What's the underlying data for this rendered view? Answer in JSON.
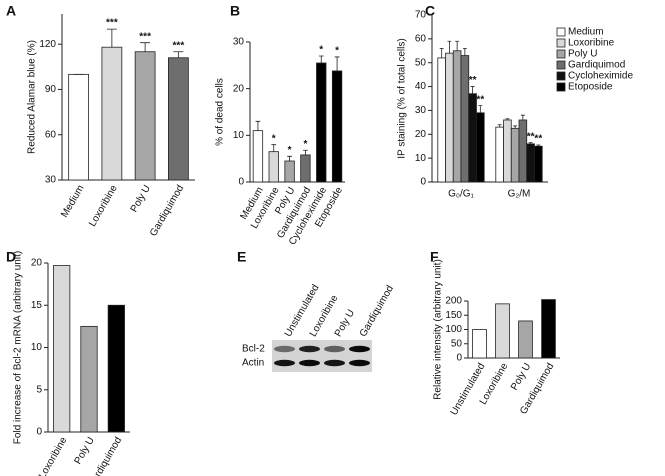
{
  "chart_data": [
    {
      "type": "bar",
      "label": "A",
      "ylabel": "Reduced Alamar blue (%)",
      "categories": [
        "Medium",
        "Loxoribine",
        "Poly U",
        "Gardiquimod"
      ],
      "values": [
        100,
        118,
        115,
        111
      ],
      "errors": [
        0,
        12,
        6,
        4
      ],
      "annotations": [
        null,
        "***",
        "***",
        "***"
      ],
      "colors": [
        "#ffffff",
        "#d9d9d9",
        "#a6a6a6",
        "#6e6e6e"
      ],
      "ylim": [
        30,
        140
      ],
      "yticks": [
        30,
        60,
        90,
        120
      ]
    },
    {
      "type": "bar",
      "label": "B",
      "ylabel": "% of dead cells",
      "categories": [
        "Medium",
        "Loxoribine",
        "Poly U",
        "Gardiquimod",
        "Cycloheximide",
        "Etoposide"
      ],
      "values": [
        11,
        6.5,
        4.5,
        5.8,
        25.5,
        23.8
      ],
      "errors": [
        2,
        1.5,
        1,
        1,
        1.5,
        3
      ],
      "annotations": [
        null,
        "*",
        "*",
        "*",
        "*",
        "*"
      ],
      "colors": [
        "#ffffff",
        "#d9d9d9",
        "#a6a6a6",
        "#6e6e6e",
        "#000000",
        "#000000"
      ],
      "ylim": [
        0,
        30
      ],
      "yticks": [
        0,
        10,
        20,
        30
      ]
    },
    {
      "type": "grouped_bar",
      "label": "C",
      "ylabel": "IP staining (% of total cells)",
      "categories": [
        "G₀/G₁",
        "G₂/M"
      ],
      "series": [
        {
          "name": "Medium",
          "color": "#ffffff",
          "values": [
            52,
            23
          ],
          "errors": [
            4,
            1
          ],
          "annotations": [
            null,
            null
          ]
        },
        {
          "name": "Loxoribine",
          "color": "#d9d9d9",
          "values": [
            54,
            26
          ],
          "errors": [
            5,
            0.5
          ],
          "annotations": [
            null,
            null
          ]
        },
        {
          "name": "Poly U",
          "color": "#a6a6a6",
          "values": [
            55,
            22.5
          ],
          "errors": [
            4,
            1
          ],
          "annotations": [
            null,
            null
          ]
        },
        {
          "name": "Gardiquimod",
          "color": "#6e6e6e",
          "values": [
            53,
            26
          ],
          "errors": [
            3,
            2
          ],
          "annotations": [
            null,
            null
          ]
        },
        {
          "name": "Cycloheximide",
          "color": "#111111",
          "values": [
            37,
            16
          ],
          "errors": [
            3,
            0.5
          ],
          "annotations": [
            "**",
            "**"
          ]
        },
        {
          "name": "Etoposide",
          "color": "#000000",
          "values": [
            29,
            15
          ],
          "errors": [
            3,
            0.5
          ],
          "annotations": [
            "**",
            "**"
          ]
        }
      ],
      "ylim": [
        0,
        70
      ],
      "yticks": [
        0,
        10,
        20,
        30,
        40,
        50,
        60,
        70
      ]
    },
    {
      "type": "bar",
      "label": "D",
      "ylabel": "Fold increase of Bcl-2 mRNA (arbitrary unit)",
      "categories": [
        "Loxoribine",
        "Poly U",
        "Gardiquimod"
      ],
      "values": [
        19.7,
        12.5,
        15
      ],
      "colors": [
        "#d9d9d9",
        "#a6a6a6",
        "#000000"
      ],
      "ylim": [
        0,
        20
      ],
      "yticks": [
        0,
        5,
        10,
        15,
        20
      ]
    },
    {
      "type": "blot",
      "label": "E",
      "categories": [
        "Unstimulated",
        "Loxoribine",
        "Poly U",
        "Gardiquimod"
      ],
      "rows": [
        "Bcl-2",
        "Actin"
      ]
    },
    {
      "type": "bar",
      "label": "F",
      "ylabel": "Relative intensity (arbitrary unit)",
      "categories": [
        "Unstimulated",
        "Loxoribine",
        "Poly U",
        "Gardiquimod"
      ],
      "values": [
        100,
        190,
        130,
        205
      ],
      "colors": [
        "#ffffff",
        "#d9d9d9",
        "#a6a6a6",
        "#000000"
      ],
      "ylim": [
        0,
        200
      ],
      "yticks": [
        0,
        50,
        100,
        150,
        200
      ]
    }
  ]
}
